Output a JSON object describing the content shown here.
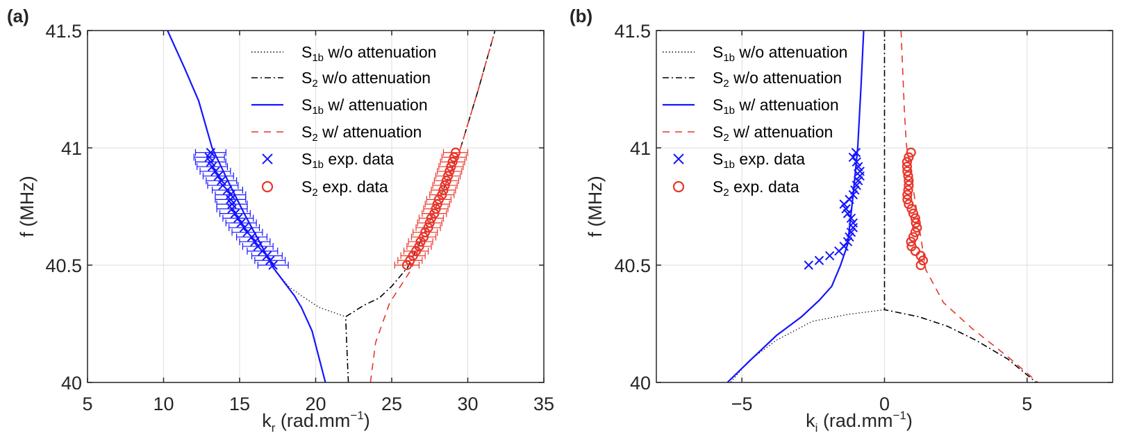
{
  "colors": {
    "blue": "#1414ff",
    "red": "#e8352a",
    "black": "#000000",
    "grid": "#e3e3e3",
    "axis": "#262626"
  },
  "chart_data": [
    {
      "type": "line",
      "panel_label": "(a)",
      "xlabel": {
        "main": "k",
        "sub": "r",
        "rest": " (rad.mm",
        "sup": "−1",
        "end": ")"
      },
      "ylabel": "f (MHz)",
      "xlim": [
        5,
        35
      ],
      "ylim": [
        40,
        41.5
      ],
      "xticks": [
        "5",
        "10",
        "15",
        "20",
        "25",
        "30",
        "35"
      ],
      "yticks": [
        "40",
        "40.5",
        "41",
        "41.5"
      ],
      "grid": true,
      "legend_position": "top-right",
      "series": [
        {
          "name": {
            "main": "S",
            "sub": "1b",
            "rest": " w/o attenuation"
          },
          "style": "dotted",
          "color": "black",
          "points": [
            [
              10.26,
              41.5
            ],
            [
              11.38,
              41.34
            ],
            [
              12.31,
              41.2
            ],
            [
              13.19,
              41.0
            ],
            [
              14.3,
              40.85
            ],
            [
              15.3,
              40.72
            ],
            [
              16.3,
              40.6
            ],
            [
              17.2,
              40.49
            ],
            [
              18.2,
              40.41
            ],
            [
              19.06,
              40.37
            ],
            [
              20.22,
              40.32
            ],
            [
              21.97,
              40.28
            ]
          ]
        },
        {
          "name": {
            "main": "S",
            "sub": "2",
            "rest": " w/o attenuation"
          },
          "style": "dashdot",
          "color": "black",
          "points": [
            [
              22.15,
              40.0
            ],
            [
              22.05,
              40.15
            ],
            [
              21.97,
              40.28
            ],
            [
              23.2,
              40.33
            ],
            [
              24.18,
              40.36
            ],
            [
              25.0,
              40.41
            ],
            [
              26.04,
              40.49
            ],
            [
              27.1,
              40.63
            ],
            [
              28.13,
              40.78
            ],
            [
              29.53,
              41.0
            ],
            [
              30.7,
              41.25
            ],
            [
              31.79,
              41.5
            ]
          ]
        },
        {
          "name": {
            "main": "S",
            "sub": "1b",
            "rest": " w/ attenuation"
          },
          "style": "solid",
          "color": "blue",
          "points": [
            [
              10.26,
              41.5
            ],
            [
              11.38,
              41.34
            ],
            [
              12.31,
              41.2
            ],
            [
              13.19,
              41.0
            ],
            [
              14.3,
              40.85
            ],
            [
              15.3,
              40.72
            ],
            [
              16.3,
              40.6
            ],
            [
              17.2,
              40.49
            ],
            [
              17.9,
              40.43
            ],
            [
              18.6,
              40.37
            ],
            [
              19.06,
              40.32
            ],
            [
              19.76,
              40.22
            ],
            [
              20.2,
              40.11
            ],
            [
              20.64,
              40.0
            ]
          ]
        },
        {
          "name": {
            "main": "S",
            "sub": "2",
            "rest": " w/ attenuation"
          },
          "style": "dashed",
          "color": "red",
          "points": [
            [
              23.6,
              40.0
            ],
            [
              23.94,
              40.17
            ],
            [
              24.87,
              40.34
            ],
            [
              26.27,
              40.48
            ],
            [
              27.1,
              40.63
            ],
            [
              28.13,
              40.78
            ],
            [
              29.53,
              41.0
            ],
            [
              30.7,
              41.25
            ],
            [
              31.79,
              41.5
            ]
          ]
        },
        {
          "name": {
            "main": "S",
            "sub": "1b",
            "rest": " exp. data"
          },
          "style": "x-marker",
          "color": "blue",
          "xerr": 1.0,
          "points": [
            [
              17.2,
              40.5
            ],
            [
              17.0,
              40.52
            ],
            [
              16.8,
              40.54
            ],
            [
              16.5,
              40.56
            ],
            [
              16.2,
              40.58
            ],
            [
              16.0,
              40.6
            ],
            [
              15.8,
              40.62
            ],
            [
              15.5,
              40.64
            ],
            [
              15.3,
              40.66
            ],
            [
              15.1,
              40.68
            ],
            [
              14.9,
              40.7
            ],
            [
              14.7,
              40.72
            ],
            [
              14.5,
              40.74
            ],
            [
              14.5,
              40.76
            ],
            [
              14.4,
              40.78
            ],
            [
              14.4,
              40.8
            ],
            [
              14.2,
              40.82
            ],
            [
              13.9,
              40.84
            ],
            [
              13.8,
              40.86
            ],
            [
              13.6,
              40.88
            ],
            [
              13.4,
              40.9
            ],
            [
              13.2,
              40.92
            ],
            [
              13.1,
              40.94
            ],
            [
              13.0,
              40.96
            ],
            [
              13.1,
              40.98
            ]
          ]
        },
        {
          "name": {
            "main": "S",
            "sub": "2",
            "rest": " exp. data"
          },
          "style": "o-marker",
          "color": "red",
          "xerr": 0.8,
          "points": [
            [
              26.0,
              40.5
            ],
            [
              26.2,
              40.52
            ],
            [
              26.4,
              40.54
            ],
            [
              26.6,
              40.56
            ],
            [
              26.8,
              40.58
            ],
            [
              26.9,
              40.6
            ],
            [
              27.1,
              40.62
            ],
            [
              27.2,
              40.64
            ],
            [
              27.4,
              40.66
            ],
            [
              27.5,
              40.68
            ],
            [
              27.6,
              40.7
            ],
            [
              27.8,
              40.72
            ],
            [
              27.9,
              40.74
            ],
            [
              28.0,
              40.76
            ],
            [
              28.1,
              40.78
            ],
            [
              28.3,
              40.8
            ],
            [
              28.4,
              40.82
            ],
            [
              28.5,
              40.84
            ],
            [
              28.6,
              40.86
            ],
            [
              28.7,
              40.88
            ],
            [
              28.8,
              40.9
            ],
            [
              28.9,
              40.92
            ],
            [
              29.0,
              40.94
            ],
            [
              29.1,
              40.96
            ],
            [
              29.2,
              40.98
            ]
          ]
        }
      ]
    },
    {
      "type": "line",
      "panel_label": "(b)",
      "xlabel": {
        "main": "k",
        "sub": "i",
        "rest": " (rad.mm",
        "sup": "−1",
        "end": ")"
      },
      "ylabel": "f (MHz)",
      "xlim": [
        -8,
        8
      ],
      "ylim": [
        40,
        41.5
      ],
      "xticks": [
        "−5",
        "0",
        "5"
      ],
      "xtick_values": [
        -5,
        0,
        5
      ],
      "yticks": [
        "40",
        "40.5",
        "41",
        "41.5"
      ],
      "grid": true,
      "legend_position": "top-left",
      "series": [
        {
          "name": {
            "main": "S",
            "sub": "1b",
            "rest": " w/o attenuation"
          },
          "style": "dotted",
          "color": "black",
          "points": [
            [
              0,
              40.31
            ],
            [
              -1.29,
              40.29
            ],
            [
              -2.54,
              40.26
            ],
            [
              -3.79,
              40.18
            ],
            [
              -4.78,
              40.09
            ],
            [
              -5.4,
              40.0
            ]
          ]
        },
        {
          "name": {
            "main": "S",
            "sub": "2",
            "rest": " w/o attenuation"
          },
          "style": "dashdot",
          "color": "black",
          "points": [
            [
              0,
              41.5
            ],
            [
              0,
              40.31
            ],
            [
              1.2,
              40.28
            ],
            [
              2.2,
              40.24
            ],
            [
              3.2,
              40.18
            ],
            [
              4.32,
              40.1
            ],
            [
              5.32,
              40.0
            ]
          ]
        },
        {
          "name": {
            "main": "S",
            "sub": "1b",
            "rest": " w/ attenuation"
          },
          "style": "solid",
          "color": "blue",
          "points": [
            [
              -0.73,
              41.5
            ],
            [
              -0.82,
              41.27
            ],
            [
              -0.94,
              41.0
            ],
            [
              -1.1,
              40.8
            ],
            [
              -1.29,
              40.59
            ],
            [
              -1.54,
              40.5
            ],
            [
              -1.85,
              40.41
            ],
            [
              -2.29,
              40.35
            ],
            [
              -2.91,
              40.28
            ],
            [
              -3.79,
              40.2
            ],
            [
              -4.66,
              40.1
            ],
            [
              -5.51,
              40.0
            ]
          ]
        },
        {
          "name": {
            "main": "S",
            "sub": "2",
            "rest": " w/ attenuation"
          },
          "style": "dashed",
          "color": "red",
          "points": [
            [
              0.58,
              41.5
            ],
            [
              0.7,
              41.15
            ],
            [
              0.77,
              41.01
            ],
            [
              1.45,
              40.48
            ],
            [
              2.07,
              40.34
            ],
            [
              3.07,
              40.23
            ],
            [
              4.32,
              40.11
            ],
            [
              5.38,
              40.0
            ]
          ]
        },
        {
          "name": {
            "main": "S",
            "sub": "1b",
            "rest": " exp. data"
          },
          "style": "x-marker",
          "color": "blue",
          "points": [
            [
              -2.66,
              40.5
            ],
            [
              -2.29,
              40.52
            ],
            [
              -1.92,
              40.54
            ],
            [
              -1.6,
              40.56
            ],
            [
              -1.42,
              40.58
            ],
            [
              -1.29,
              40.6
            ],
            [
              -1.23,
              40.62
            ],
            [
              -1.17,
              40.64
            ],
            [
              -1.1,
              40.66
            ],
            [
              -1.1,
              40.68
            ],
            [
              -1.17,
              40.7
            ],
            [
              -1.29,
              40.72
            ],
            [
              -1.35,
              40.74
            ],
            [
              -1.42,
              40.76
            ],
            [
              -1.23,
              40.78
            ],
            [
              -1.1,
              40.8
            ],
            [
              -1.04,
              40.82
            ],
            [
              -0.98,
              40.84
            ],
            [
              -0.92,
              40.86
            ],
            [
              -0.86,
              40.88
            ],
            [
              -0.86,
              40.9
            ],
            [
              -0.92,
              40.92
            ],
            [
              -0.98,
              40.94
            ],
            [
              -1.1,
              40.96
            ],
            [
              -1.0,
              40.98
            ]
          ]
        },
        {
          "name": {
            "main": "S",
            "sub": "2",
            "rest": " exp. data"
          },
          "style": "o-marker",
          "color": "red",
          "points": [
            [
              1.27,
              40.5
            ],
            [
              1.35,
              40.52
            ],
            [
              1.27,
              40.54
            ],
            [
              1.08,
              40.56
            ],
            [
              0.95,
              40.58
            ],
            [
              0.93,
              40.6
            ],
            [
              1.01,
              40.62
            ],
            [
              1.08,
              40.64
            ],
            [
              1.14,
              40.66
            ],
            [
              1.1,
              40.68
            ],
            [
              1.08,
              40.7
            ],
            [
              1.01,
              40.72
            ],
            [
              0.95,
              40.74
            ],
            [
              0.85,
              40.76
            ],
            [
              0.8,
              40.78
            ],
            [
              0.8,
              40.8
            ],
            [
              0.83,
              40.82
            ],
            [
              0.85,
              40.84
            ],
            [
              0.85,
              40.86
            ],
            [
              0.83,
              40.88
            ],
            [
              0.8,
              40.9
            ],
            [
              0.79,
              40.92
            ],
            [
              0.79,
              40.94
            ],
            [
              0.85,
              40.96
            ],
            [
              0.93,
              40.98
            ]
          ]
        }
      ]
    }
  ]
}
